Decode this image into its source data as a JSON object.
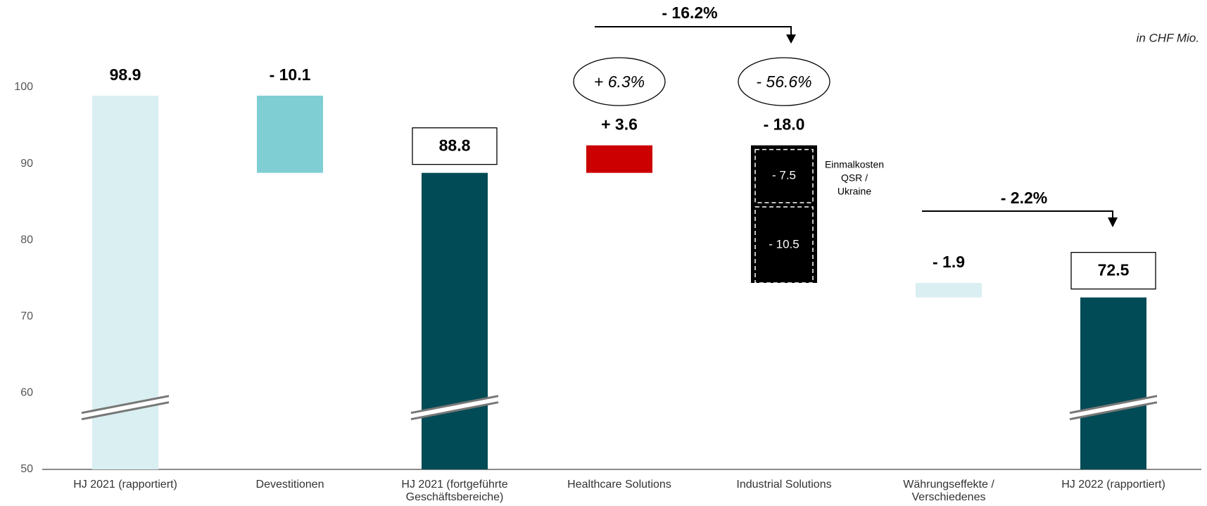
{
  "chart_data": {
    "type": "waterfall",
    "unit_note": "in CHF Mio.",
    "categories": [
      "HJ 2021 (rapportiert)",
      "Devestitionen",
      "HJ 2021 (fortgeführte Geschäftsbereiche)",
      "Healthcare Solutions",
      "Industrial Solutions",
      "Währungseffekte / Verschiedenes",
      "HJ 2022 (rapportiert)"
    ],
    "values": [
      98.9,
      -10.1,
      88.8,
      3.6,
      -18.0,
      -1.9,
      72.5
    ],
    "value_labels": [
      "98.9",
      "- 10.1",
      "88.8",
      "+ 3.6",
      "- 18.0",
      "- 1.9",
      "72.5"
    ],
    "bar_kinds": [
      "total",
      "delta",
      "total",
      "delta",
      "delta",
      "delta",
      "total"
    ],
    "boxed_labels": [
      false,
      false,
      true,
      false,
      false,
      false,
      true
    ],
    "colors": [
      "#d9eff2",
      "#7fced3",
      "#004b55",
      "#cc0000",
      "#000000",
      "#d9eff2",
      "#004b55"
    ],
    "segments": {
      "category": 4,
      "values": [
        -7.5,
        -10.5
      ],
      "value_labels": [
        "- 7.5",
        "- 10.5"
      ],
      "note": [
        "Einmalkosten",
        "QSR /",
        "Ukraine"
      ]
    },
    "growth_values": [
      null,
      null,
      null,
      6.3,
      -56.6,
      null,
      null
    ],
    "growth_labels": [
      null,
      null,
      null,
      "+ 6.3%",
      "- 56.6%",
      null,
      null
    ],
    "bridges": [
      {
        "value": -16.2,
        "label": "- 16.2%"
      },
      {
        "value": -2.2,
        "label": "- 2.2%"
      }
    ],
    "ylim": [
      50,
      100
    ],
    "yticks": [
      50,
      60,
      70,
      80,
      90,
      100
    ]
  }
}
